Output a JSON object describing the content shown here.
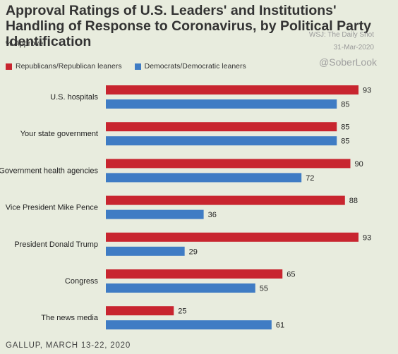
{
  "title": "Approval Ratings of U.S. Leaders' and Institutions' Handling of Response to Coronavirus, by Political Party Identification",
  "subtitle": "% Approve",
  "watermark": {
    "line1": "WSJ: The Daily Shot",
    "line2": "31-Mar-2020",
    "handle": "@SoberLook"
  },
  "source": "GALLUP, MARCH 13-22, 2020",
  "colors": {
    "republican": "#c8252f",
    "democrat": "#3f7cc4",
    "background": "#e8ecde"
  },
  "chart_data": {
    "type": "bar",
    "orientation": "horizontal",
    "categories": [
      "U.S. hospitals",
      "Your state government",
      "Government health agencies",
      "Vice President Mike Pence",
      "President Donald Trump",
      "Congress",
      "The news media"
    ],
    "series": [
      {
        "name": "Republicans/Republican leaners",
        "values": [
          93,
          85,
          90,
          88,
          93,
          65,
          25
        ]
      },
      {
        "name": "Democrats/Democratic leaners",
        "values": [
          85,
          85,
          72,
          36,
          29,
          55,
          61
        ]
      }
    ],
    "xlim": [
      0,
      100
    ],
    "legend": "top-left",
    "grid": false
  }
}
